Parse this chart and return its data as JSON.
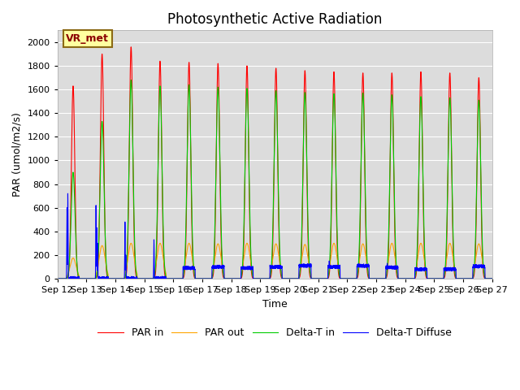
{
  "title": "Photosynthetic Active Radiation",
  "xlabel": "Time",
  "ylabel": "PAR (umol/m2/s)",
  "annotation": "VR_met",
  "ylim": [
    0,
    2100
  ],
  "yticks": [
    0,
    200,
    400,
    600,
    800,
    1000,
    1200,
    1400,
    1600,
    1800,
    2000
  ],
  "colors": {
    "PAR_in": "#FF0000",
    "PAR_out": "#FFA500",
    "Delta_T_in": "#00CC00",
    "Delta_T_Diffuse": "#0000FF"
  },
  "legend": [
    "PAR in",
    "PAR out",
    "Delta-T in",
    "Delta-T Diffuse"
  ],
  "bg_color": "#DCDCDC",
  "grid_color": "#FFFFFF",
  "title_fontsize": 12,
  "axis_fontsize": 9,
  "tick_fontsize": 8,
  "days": [
    12,
    13,
    14,
    15,
    16,
    17,
    18,
    19,
    20,
    21,
    22,
    23,
    24,
    25,
    26,
    27
  ],
  "par_in_peaks": [
    1630,
    1900,
    1960,
    1840,
    1830,
    1820,
    1800,
    1780,
    1760,
    1750,
    1740,
    1740,
    1750,
    1740,
    1700
  ],
  "par_out_peaks": [
    175,
    280,
    300,
    300,
    300,
    295,
    300,
    295,
    290,
    300,
    295,
    300,
    300,
    300,
    295
  ],
  "delta_t_in_peaks": [
    900,
    1330,
    1680,
    1630,
    1640,
    1620,
    1610,
    1590,
    1575,
    1565,
    1570,
    1555,
    1540,
    1530,
    1510
  ],
  "diffuse_day_spikes": {
    "0": [
      600,
      720
    ],
    "1": [
      620,
      430,
      300
    ],
    "2": [
      480,
      200
    ],
    "3": [
      330
    ]
  },
  "diffuse_baseline": [
    0,
    0,
    0,
    0,
    90,
    100,
    90,
    100,
    110,
    100,
    110,
    95,
    80,
    80,
    105
  ],
  "diffuse_extra_spikes": {
    "9": 150,
    "10": 120,
    "11": 130,
    "14": 110
  }
}
